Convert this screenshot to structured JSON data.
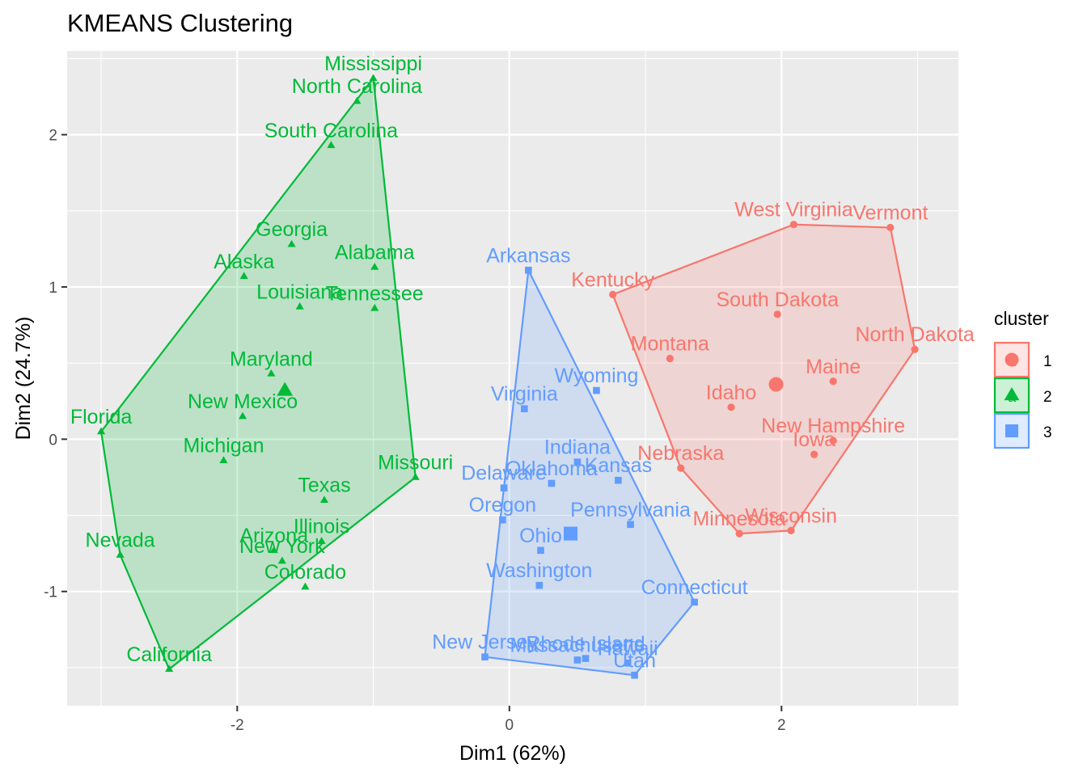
{
  "chart_data": {
    "type": "scatter",
    "title": "KMEANS Clustering",
    "xlabel": "Dim1 (62%)",
    "ylabel": "Dim2 (24.7%)",
    "xlim": [
      -3.25,
      3.3
    ],
    "ylim": [
      -1.75,
      2.55
    ],
    "x_ticks": [
      -2,
      0,
      2
    ],
    "y_ticks": [
      -1,
      0,
      1,
      2
    ],
    "x_tick_labels": [
      "-2",
      "0",
      "2"
    ],
    "y_tick_labels": [
      "-1",
      "0",
      "1",
      "2"
    ],
    "grid": true,
    "legend": {
      "title": "cluster",
      "position": "right",
      "entries": [
        "1",
        "2",
        "3"
      ],
      "key_glyph": "a"
    },
    "series": [
      {
        "name": "1",
        "color": "#F8766D",
        "fill": "#F8766D",
        "shape": "circle",
        "hull": [
          "West Virginia",
          "Vermont",
          "North Dakota",
          "Wisconsin",
          "Minnesota",
          "Nebraska",
          "Kentucky"
        ],
        "centroid": [
          1.96,
          0.36
        ],
        "points": [
          {
            "label": "West Virginia",
            "x": 2.09,
            "y": 1.41
          },
          {
            "label": "Vermont",
            "x": 2.8,
            "y": 1.39
          },
          {
            "label": "Kentucky",
            "x": 0.76,
            "y": 0.95
          },
          {
            "label": "South Dakota",
            "x": 1.97,
            "y": 0.82
          },
          {
            "label": "North Dakota",
            "x": 2.98,
            "y": 0.59
          },
          {
            "label": "Montana",
            "x": 1.18,
            "y": 0.53
          },
          {
            "label": "Maine",
            "x": 2.38,
            "y": 0.38
          },
          {
            "label": "Idaho",
            "x": 1.63,
            "y": 0.21
          },
          {
            "label": "New Hampshire",
            "x": 2.38,
            "y": -0.01
          },
          {
            "label": "Iowa",
            "x": 2.24,
            "y": -0.1
          },
          {
            "label": "Nebraska",
            "x": 1.26,
            "y": -0.19
          },
          {
            "label": "Wisconsin",
            "x": 2.07,
            "y": -0.6
          },
          {
            "label": "Minnesota",
            "x": 1.69,
            "y": -0.62
          }
        ]
      },
      {
        "name": "2",
        "color": "#00BA38",
        "fill": "#00BA38",
        "shape": "triangle",
        "hull": [
          "Mississippi",
          "Missouri",
          "California",
          "Nevada",
          "Florida"
        ],
        "centroid": [
          -1.65,
          0.32
        ],
        "points": [
          {
            "label": "Mississippi",
            "x": -1.0,
            "y": 2.37
          },
          {
            "label": "North Carolina",
            "x": -1.12,
            "y": 2.22
          },
          {
            "label": "South Carolina",
            "x": -1.31,
            "y": 1.93
          },
          {
            "label": "Georgia",
            "x": -1.6,
            "y": 1.28
          },
          {
            "label": "Alabama",
            "x": -0.99,
            "y": 1.13
          },
          {
            "label": "Alaska",
            "x": -1.95,
            "y": 1.07
          },
          {
            "label": "Louisiana",
            "x": -1.54,
            "y": 0.87
          },
          {
            "label": "Tennessee",
            "x": -0.99,
            "y": 0.86
          },
          {
            "label": "Maryland",
            "x": -1.75,
            "y": 0.43
          },
          {
            "label": "New Mexico",
            "x": -1.96,
            "y": 0.15
          },
          {
            "label": "Florida",
            "x": -3.0,
            "y": 0.05
          },
          {
            "label": "Michigan",
            "x": -2.1,
            "y": -0.14
          },
          {
            "label": "Missouri",
            "x": -0.69,
            "y": -0.25
          },
          {
            "label": "Texas",
            "x": -1.36,
            "y": -0.4
          },
          {
            "label": "Illinois",
            "x": -1.38,
            "y": -0.67
          },
          {
            "label": "Arizona",
            "x": -1.73,
            "y": -0.73
          },
          {
            "label": "New York",
            "x": -1.67,
            "y": -0.8
          },
          {
            "label": "Nevada",
            "x": -2.86,
            "y": -0.76
          },
          {
            "label": "Colorado",
            "x": -1.5,
            "y": -0.97
          },
          {
            "label": "California",
            "x": -2.5,
            "y": -1.51
          }
        ]
      },
      {
        "name": "3",
        "color": "#619CFF",
        "fill": "#619CFF",
        "shape": "square",
        "hull": [
          "Arkansas",
          "Connecticut",
          "Utah",
          "New Jersey"
        ],
        "centroid": [
          0.45,
          -0.62
        ],
        "points": [
          {
            "label": "Arkansas",
            "x": 0.14,
            "y": 1.11
          },
          {
            "label": "Wyoming",
            "x": 0.64,
            "y": 0.32
          },
          {
            "label": "Virginia",
            "x": 0.11,
            "y": 0.2
          },
          {
            "label": "Indiana",
            "x": 0.5,
            "y": -0.15
          },
          {
            "label": "Kansas",
            "x": 0.8,
            "y": -0.27
          },
          {
            "label": "Oklahoma",
            "x": 0.31,
            "y": -0.29
          },
          {
            "label": "Delaware",
            "x": -0.04,
            "y": -0.32
          },
          {
            "label": "Oregon",
            "x": -0.05,
            "y": -0.53
          },
          {
            "label": "Pennsylvania",
            "x": 0.89,
            "y": -0.56
          },
          {
            "label": "Ohio",
            "x": 0.23,
            "y": -0.73
          },
          {
            "label": "Washington",
            "x": 0.22,
            "y": -0.96
          },
          {
            "label": "Connecticut",
            "x": 1.36,
            "y": -1.07
          },
          {
            "label": "New Jersey",
            "x": -0.18,
            "y": -1.43
          },
          {
            "label": "Massachusetts",
            "x": 0.5,
            "y": -1.45
          },
          {
            "label": "Rhode Island",
            "x": 0.56,
            "y": -1.44
          },
          {
            "label": "Hawaii",
            "x": 0.87,
            "y": -1.47
          },
          {
            "label": "Utah",
            "x": 0.92,
            "y": -1.55
          }
        ]
      }
    ]
  }
}
